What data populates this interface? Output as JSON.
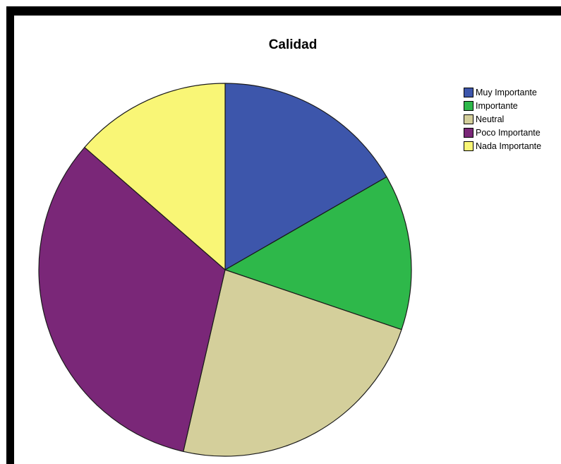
{
  "chart_data": {
    "type": "pie",
    "title": "Calidad",
    "categories": [
      "Muy Importante",
      "Importante",
      "Neutral",
      "Poco Importante",
      "Nada Importante"
    ],
    "values": [
      16.7,
      13.5,
      23.4,
      32.8,
      13.6
    ],
    "colors": [
      "#3d56ab",
      "#2eb84a",
      "#d4cf9b",
      "#7a2778",
      "#f9f676"
    ],
    "legend_position": "top-right",
    "start_angle_deg": 0,
    "direction": "clockwise"
  }
}
